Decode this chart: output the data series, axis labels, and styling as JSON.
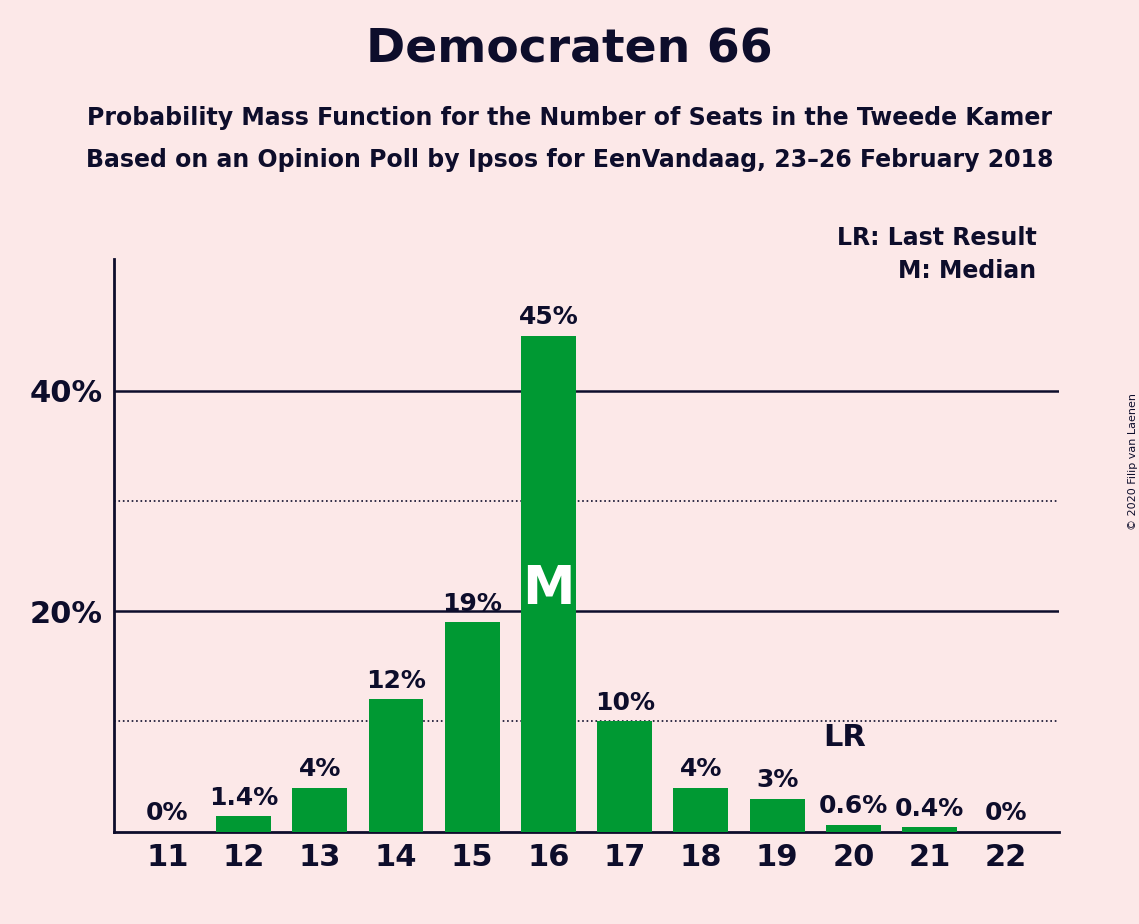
{
  "title": "Democraten 66",
  "subtitle1": "Probability Mass Function for the Number of Seats in the Tweede Kamer",
  "subtitle2": "Based on an Opinion Poll by Ipsos for EenVandaag, 23–26 February 2018",
  "copyright": "© 2020 Filip van Laenen",
  "seats": [
    11,
    12,
    13,
    14,
    15,
    16,
    17,
    18,
    19,
    20,
    21,
    22
  ],
  "probabilities": [
    0.0,
    1.4,
    4.0,
    12.0,
    19.0,
    45.0,
    10.0,
    4.0,
    3.0,
    0.6,
    0.4,
    0.0
  ],
  "labels": [
    "0%",
    "1.4%",
    "4%",
    "12%",
    "19%",
    "45%",
    "10%",
    "4%",
    "3%",
    "0.6%",
    "0.4%",
    "0%"
  ],
  "bar_color": "#009933",
  "background_color": "#fce8e8",
  "text_color": "#0d0d2b",
  "median_seat": 16,
  "median_label": "M",
  "median_y": 22.0,
  "last_result_seat": 19,
  "last_result_label": "LR",
  "last_result_y": 8.5,
  "last_result_x": 19.6,
  "yticks_solid": [
    20,
    40
  ],
  "yticks_dotted": [
    10,
    30
  ],
  "ylim": [
    0,
    52
  ],
  "xlim": [
    10.3,
    22.7
  ],
  "legend_lr": "LR: Last Result",
  "legend_m": "M: Median",
  "title_fontsize": 34,
  "subtitle_fontsize": 17,
  "axis_tick_fontsize": 22,
  "label_fontsize": 18,
  "legend_fontsize": 17,
  "bar_width": 0.72,
  "spine_linewidth": 2.0,
  "gridline_solid_lw": 1.8,
  "gridline_dotted_lw": 1.2
}
